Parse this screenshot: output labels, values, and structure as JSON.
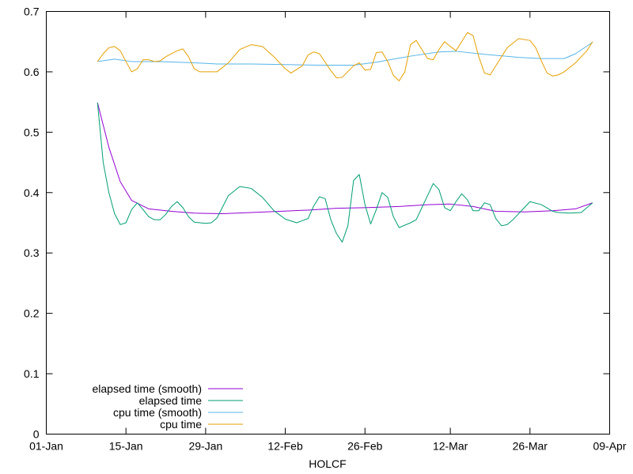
{
  "chart_data": {
    "type": "line",
    "title": "",
    "xlabel": "HOLCF",
    "ylabel": "",
    "x_ticks": [
      "01-Jan",
      "15-Jan",
      "29-Jan",
      "12-Feb",
      "26-Feb",
      "12-Mar",
      "26-Mar",
      "09-Apr"
    ],
    "y_ticks": [
      "0",
      "0.1",
      "0.2",
      "0.3",
      "0.4",
      "0.5",
      "0.6",
      "0.7"
    ],
    "xlim": [
      "01-Jan",
      "09-Apr"
    ],
    "ylim": [
      0,
      0.7
    ],
    "grid": false,
    "legend_position": "bottom-left",
    "series": [
      {
        "name": "elapsed time (smooth)",
        "color": "#9400d3",
        "points": [
          [
            "10-Jan",
            0.549
          ],
          [
            "12-Jan",
            0.475
          ],
          [
            "14-Jan",
            0.418
          ],
          [
            "16-Jan",
            0.387
          ],
          [
            "19-Jan",
            0.373
          ],
          [
            "23-Jan",
            0.369
          ],
          [
            "27-Jan",
            0.366
          ],
          [
            "01-Feb",
            0.365
          ],
          [
            "06-Feb",
            0.367
          ],
          [
            "11-Feb",
            0.369
          ],
          [
            "16-Feb",
            0.371
          ],
          [
            "21-Feb",
            0.374
          ],
          [
            "26-Feb",
            0.375
          ],
          [
            "03-Mar",
            0.377
          ],
          [
            "08-Mar",
            0.38
          ],
          [
            "12-Mar",
            0.381
          ],
          [
            "16-Mar",
            0.377
          ],
          [
            "20-Mar",
            0.369
          ],
          [
            "25-Mar",
            0.368
          ],
          [
            "30-Mar",
            0.37
          ],
          [
            "03-Apr",
            0.373
          ],
          [
            "06-Apr",
            0.383
          ]
        ]
      },
      {
        "name": "elapsed time",
        "color": "#009e73",
        "points": [
          [
            "10-Jan",
            0.549
          ],
          [
            "11-Jan",
            0.45
          ],
          [
            "12-Jan",
            0.4
          ],
          [
            "13-Jan",
            0.365
          ],
          [
            "14-Jan",
            0.347
          ],
          [
            "15-Jan",
            0.35
          ],
          [
            "16-Jan",
            0.372
          ],
          [
            "17-Jan",
            0.383
          ],
          [
            "18-Jan",
            0.372
          ],
          [
            "19-Jan",
            0.36
          ],
          [
            "20-Jan",
            0.355
          ],
          [
            "21-Jan",
            0.355
          ],
          [
            "22-Jan",
            0.364
          ],
          [
            "23-Jan",
            0.377
          ],
          [
            "24-Jan",
            0.385
          ],
          [
            "25-Jan",
            0.375
          ],
          [
            "26-Jan",
            0.36
          ],
          [
            "27-Jan",
            0.351
          ],
          [
            "28-Jan",
            0.35
          ],
          [
            "29-Jan",
            0.349
          ],
          [
            "30-Jan",
            0.35
          ],
          [
            "31-Jan",
            0.358
          ],
          [
            "02-Feb",
            0.395
          ],
          [
            "04-Feb",
            0.41
          ],
          [
            "06-Feb",
            0.407
          ],
          [
            "08-Feb",
            0.392
          ],
          [
            "10-Feb",
            0.37
          ],
          [
            "12-Feb",
            0.356
          ],
          [
            "14-Feb",
            0.35
          ],
          [
            "16-Feb",
            0.357
          ],
          [
            "17-Feb",
            0.378
          ],
          [
            "18-Feb",
            0.393
          ],
          [
            "19-Feb",
            0.39
          ],
          [
            "20-Feb",
            0.355
          ],
          [
            "21-Feb",
            0.332
          ],
          [
            "22-Feb",
            0.318
          ],
          [
            "23-Feb",
            0.345
          ],
          [
            "24-Feb",
            0.42
          ],
          [
            "25-Feb",
            0.43
          ],
          [
            "26-Feb",
            0.38
          ],
          [
            "27-Feb",
            0.348
          ],
          [
            "28-Feb",
            0.372
          ],
          [
            "29-Feb",
            0.4
          ],
          [
            "01-Mar",
            0.392
          ],
          [
            "02-Mar",
            0.36
          ],
          [
            "03-Mar",
            0.342
          ],
          [
            "05-Mar",
            0.35
          ],
          [
            "06-Mar",
            0.355
          ],
          [
            "07-Mar",
            0.375
          ],
          [
            "09-Mar",
            0.415
          ],
          [
            "10-Mar",
            0.405
          ],
          [
            "11-Mar",
            0.375
          ],
          [
            "12-Mar",
            0.37
          ],
          [
            "13-Mar",
            0.385
          ],
          [
            "14-Mar",
            0.398
          ],
          [
            "15-Mar",
            0.388
          ],
          [
            "16-Mar",
            0.37
          ],
          [
            "17-Mar",
            0.37
          ],
          [
            "18-Mar",
            0.383
          ],
          [
            "19-Mar",
            0.38
          ],
          [
            "20-Mar",
            0.357
          ],
          [
            "21-Mar",
            0.345
          ],
          [
            "22-Mar",
            0.347
          ],
          [
            "23-Mar",
            0.355
          ],
          [
            "25-Mar",
            0.375
          ],
          [
            "26-Mar",
            0.385
          ],
          [
            "28-Mar",
            0.38
          ],
          [
            "30-Mar",
            0.369
          ],
          [
            "31-Mar",
            0.367
          ],
          [
            "02-Apr",
            0.366
          ],
          [
            "04-Apr",
            0.367
          ],
          [
            "06-Apr",
            0.383
          ]
        ]
      },
      {
        "name": "cpu time (smooth)",
        "color": "#56b4e9",
        "points": [
          [
            "10-Jan",
            0.617
          ],
          [
            "13-Jan",
            0.621
          ],
          [
            "16-Jan",
            0.617
          ],
          [
            "21-Jan",
            0.617
          ],
          [
            "27-Jan",
            0.615
          ],
          [
            "31-Jan",
            0.613
          ],
          [
            "06-Feb",
            0.613
          ],
          [
            "12-Feb",
            0.612
          ],
          [
            "18-Feb",
            0.611
          ],
          [
            "24-Feb",
            0.611
          ],
          [
            "28-Feb",
            0.616
          ],
          [
            "05-Mar",
            0.626
          ],
          [
            "10-Mar",
            0.633
          ],
          [
            "13-Mar",
            0.634
          ],
          [
            "18-Mar",
            0.629
          ],
          [
            "24-Mar",
            0.624
          ],
          [
            "28-Mar",
            0.622
          ],
          [
            "01-Apr",
            0.622
          ],
          [
            "03-Apr",
            0.63
          ],
          [
            "06-Apr",
            0.649
          ]
        ]
      },
      {
        "name": "cpu time",
        "color": "#e69f00",
        "points": [
          [
            "10-Jan",
            0.617
          ],
          [
            "11-Jan",
            0.63
          ],
          [
            "12-Jan",
            0.64
          ],
          [
            "13-Jan",
            0.642
          ],
          [
            "14-Jan",
            0.635
          ],
          [
            "15-Jan",
            0.617
          ],
          [
            "16-Jan",
            0.6
          ],
          [
            "17-Jan",
            0.605
          ],
          [
            "18-Jan",
            0.62
          ],
          [
            "19-Jan",
            0.62
          ],
          [
            "20-Jan",
            0.617
          ],
          [
            "21-Jan",
            0.618
          ],
          [
            "22-Jan",
            0.625
          ],
          [
            "24-Jan",
            0.635
          ],
          [
            "25-Jan",
            0.638
          ],
          [
            "26-Jan",
            0.625
          ],
          [
            "27-Jan",
            0.605
          ],
          [
            "28-Jan",
            0.6
          ],
          [
            "31-Jan",
            0.6
          ],
          [
            "02-Feb",
            0.615
          ],
          [
            "04-Feb",
            0.637
          ],
          [
            "06-Feb",
            0.645
          ],
          [
            "08-Feb",
            0.642
          ],
          [
            "10-Feb",
            0.625
          ],
          [
            "12-Feb",
            0.605
          ],
          [
            "13-Feb",
            0.598
          ],
          [
            "15-Feb",
            0.61
          ],
          [
            "16-Feb",
            0.628
          ],
          [
            "17-Feb",
            0.633
          ],
          [
            "18-Feb",
            0.63
          ],
          [
            "20-Feb",
            0.602
          ],
          [
            "21-Feb",
            0.59
          ],
          [
            "22-Feb",
            0.591
          ],
          [
            "24-Feb",
            0.61
          ],
          [
            "25-Feb",
            0.615
          ],
          [
            "26-Feb",
            0.603
          ],
          [
            "27-Feb",
            0.604
          ],
          [
            "28-Feb",
            0.632
          ],
          [
            "29-Feb",
            0.633
          ],
          [
            "01-Mar",
            0.617
          ],
          [
            "02-Mar",
            0.594
          ],
          [
            "03-Mar",
            0.585
          ],
          [
            "04-Mar",
            0.6
          ],
          [
            "05-Mar",
            0.645
          ],
          [
            "06-Mar",
            0.652
          ],
          [
            "07-Mar",
            0.637
          ],
          [
            "08-Mar",
            0.622
          ],
          [
            "09-Mar",
            0.62
          ],
          [
            "10-Mar",
            0.637
          ],
          [
            "11-Mar",
            0.65
          ],
          [
            "12-Mar",
            0.642
          ],
          [
            "13-Mar",
            0.635
          ],
          [
            "14-Mar",
            0.65
          ],
          [
            "15-Mar",
            0.665
          ],
          [
            "16-Mar",
            0.66
          ],
          [
            "17-Mar",
            0.625
          ],
          [
            "18-Mar",
            0.598
          ],
          [
            "19-Mar",
            0.595
          ],
          [
            "20-Mar",
            0.61
          ],
          [
            "22-Mar",
            0.64
          ],
          [
            "24-Mar",
            0.655
          ],
          [
            "26-Mar",
            0.652
          ],
          [
            "27-Mar",
            0.64
          ],
          [
            "28-Mar",
            0.618
          ],
          [
            "29-Mar",
            0.598
          ],
          [
            "30-Mar",
            0.593
          ],
          [
            "31-Mar",
            0.595
          ],
          [
            "01-Apr",
            0.6
          ],
          [
            "03-Apr",
            0.615
          ],
          [
            "05-Apr",
            0.635
          ],
          [
            "06-Apr",
            0.65
          ]
        ]
      }
    ]
  }
}
